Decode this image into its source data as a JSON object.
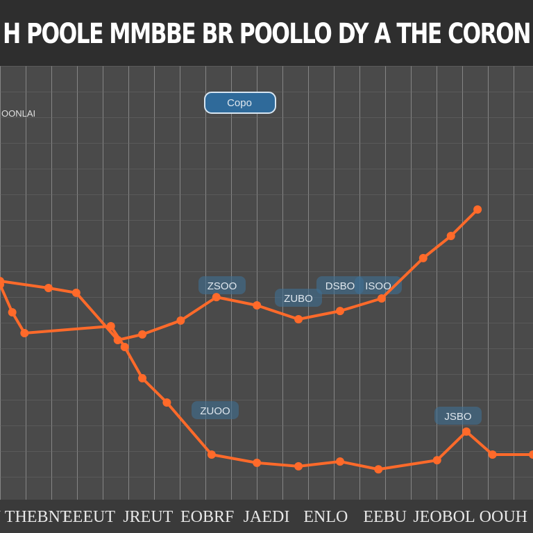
{
  "chart_data": {
    "type": "line",
    "title": "H POOLE MMBBE BR POOLLO DY A THE CORON",
    "y_label": "OONLAI",
    "x_labels": [
      "U THEBNT",
      "EEEUT",
      "JREUT",
      "EOBRF",
      "JAEDI",
      "ENLO",
      "EEBU",
      "JEOBOL",
      "OOUH"
    ],
    "annotations": [
      "Copo",
      "ZUOO",
      "ZSOO",
      "ZUBO",
      "DSBO",
      "ISOO",
      "JSBO"
    ],
    "xlim": [
      0,
      100
    ],
    "ylim": [
      0,
      100
    ],
    "grid": true,
    "series": [
      {
        "color": "#ff6a2a",
        "x": [
          0,
          9.1,
          14.3,
          22.1,
          26.7,
          33.9,
          40.6,
          48.2,
          56.0,
          63.8,
          71.6,
          79.4,
          84.6,
          89.6
        ],
        "values": [
          50.4,
          48.8,
          47.7,
          36.8,
          38.1,
          41.3,
          46.7,
          44.8,
          41.6,
          43.5,
          46.4,
          55.7,
          60.8,
          66.9
        ]
      },
      {
        "color": "#ff6a2a",
        "x": [
          0,
          2.3,
          4.6,
          20.8,
          23.4,
          26.7,
          31.3,
          39.7,
          48.2,
          56.0,
          63.8,
          71.0,
          82.0,
          87.5,
          92.4,
          100
        ],
        "values": [
          49.6,
          43.2,
          38.4,
          40.0,
          35.2,
          28.0,
          22.4,
          10.4,
          8.5,
          7.7,
          8.8,
          7.0,
          9.1,
          15.7,
          10.4,
          10.4
        ]
      }
    ]
  }
}
